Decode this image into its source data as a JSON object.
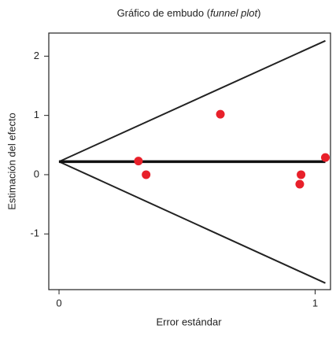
{
  "chart_data": {
    "type": "scatter",
    "title_parts": [
      "Gráfico de embudo (",
      "funnel plot",
      ")"
    ],
    "x_label": "Error estándar",
    "y_label": "Estimación del efecto",
    "xlim": [
      -0.04,
      1.06
    ],
    "ylim": [
      -1.94,
      2.39
    ],
    "xticks": [
      0,
      1
    ],
    "yticks": [
      2,
      1,
      0,
      -1
    ],
    "points": {
      "color": "#e8202a",
      "x": [
        0.31,
        0.34,
        0.63,
        0.945,
        0.94,
        1.04
      ],
      "y": [
        0.23,
        0,
        1.02,
        0,
        -0.16,
        0.29
      ]
    },
    "lines": [
      {
        "color": "#222222",
        "width": 2,
        "x": [
          0,
          1.04
        ],
        "y": [
          0.22,
          2.26
        ]
      },
      {
        "color": "#222222",
        "width": 2,
        "x": [
          0,
          1.04
        ],
        "y": [
          0.22,
          -1.83
        ]
      },
      {
        "color": "#111111",
        "width": 3.5,
        "x": [
          0,
          1.04
        ],
        "y": [
          0.22,
          0.22
        ]
      }
    ]
  }
}
